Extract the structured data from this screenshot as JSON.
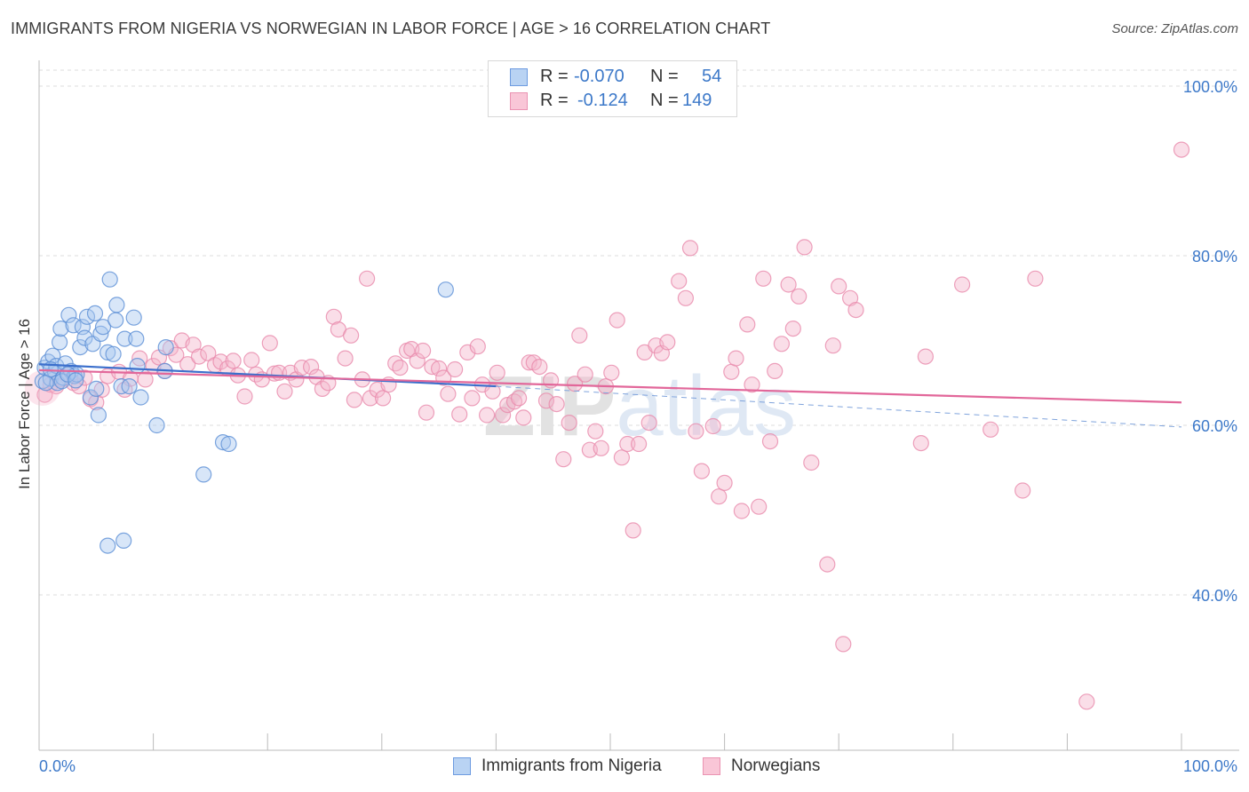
{
  "title": "IMMIGRANTS FROM NIGERIA VS NORWEGIAN IN LABOR FORCE | AGE > 16 CORRELATION CHART",
  "source": "Source: ZipAtlas.com",
  "watermark": "ZIPatlas",
  "legend": {
    "rows": [
      {
        "r_label": "R =",
        "r_value": "-0.070",
        "n_label": "N =",
        "n_value": "54"
      },
      {
        "r_label": "R =",
        "r_value": "-0.124",
        "n_label": "N =",
        "n_value": "149"
      }
    ]
  },
  "bottom_legend": [
    "Immigrants from Nigeria",
    "Norwegians"
  ],
  "colors": {
    "blue_fill": "#a9c8f0",
    "blue_stroke": "#5b8fd6",
    "blue_line": "#3b6fcc",
    "pink_fill": "#f5b5cb",
    "pink_stroke": "#e98aab",
    "pink_line": "#e2679a",
    "tick_label": "#3d79c9",
    "grid": "#dddddd"
  },
  "chart_data": {
    "type": "scatter",
    "ylabel": "In Labor Force | Age > 16",
    "xlabel": "",
    "xlim": [
      0,
      100
    ],
    "ylim": [
      20,
      102
    ],
    "x_tick_labels": [
      "0.0%",
      "100.0%"
    ],
    "y_ticks": [
      40,
      60,
      80,
      100
    ],
    "y_tick_labels": [
      "40.0%",
      "60.0%",
      "80.0%",
      "100.0%"
    ],
    "grid": true,
    "legend_position": "top-center",
    "series": [
      {
        "name": "Immigrants from Nigeria",
        "color": "blue",
        "trend": {
          "x1": 0,
          "y1": 67.2,
          "x2": 40,
          "y2": 64.6,
          "dash_to_x": 100,
          "dash_to_y": 59.8
        },
        "points": [
          [
            0.3,
            65.2
          ],
          [
            0.5,
            66.8
          ],
          [
            0.8,
            67.5
          ],
          [
            1.0,
            65.5
          ],
          [
            1.2,
            68.2
          ],
          [
            1.4,
            66.3
          ],
          [
            1.5,
            67.0
          ],
          [
            1.6,
            65.0
          ],
          [
            1.8,
            69.8
          ],
          [
            1.9,
            71.4
          ],
          [
            2.1,
            65.6
          ],
          [
            2.3,
            67.3
          ],
          [
            2.6,
            73.0
          ],
          [
            2.8,
            66.4
          ],
          [
            3.0,
            71.8
          ],
          [
            3.1,
            65.8
          ],
          [
            3.3,
            66.0
          ],
          [
            3.6,
            69.2
          ],
          [
            3.8,
            71.6
          ],
          [
            4.0,
            70.3
          ],
          [
            4.2,
            72.8
          ],
          [
            4.5,
            63.3
          ],
          [
            4.7,
            69.6
          ],
          [
            4.9,
            73.2
          ],
          [
            5.0,
            64.3
          ],
          [
            5.2,
            61.2
          ],
          [
            5.4,
            70.8
          ],
          [
            5.6,
            71.6
          ],
          [
            6.0,
            68.6
          ],
          [
            6.2,
            77.2
          ],
          [
            6.5,
            68.4
          ],
          [
            6.7,
            72.4
          ],
          [
            6.8,
            74.2
          ],
          [
            7.2,
            64.6
          ],
          [
            7.5,
            70.2
          ],
          [
            7.9,
            64.6
          ],
          [
            8.3,
            72.7
          ],
          [
            8.6,
            67.0
          ],
          [
            8.9,
            63.3
          ],
          [
            8.5,
            70.2
          ],
          [
            10.3,
            60.0
          ],
          [
            11.1,
            69.2
          ],
          [
            11.0,
            66.4
          ],
          [
            14.4,
            54.2
          ],
          [
            16.1,
            58.0
          ],
          [
            16.6,
            57.8
          ],
          [
            6.0,
            45.8
          ],
          [
            7.4,
            46.4
          ],
          [
            35.6,
            76.0
          ],
          [
            0.6,
            65.0
          ],
          [
            1.0,
            66.6
          ],
          [
            2.0,
            65.2
          ],
          [
            2.5,
            66.0
          ],
          [
            3.2,
            65.3
          ]
        ]
      },
      {
        "name": "Norwegians",
        "color": "pink",
        "trend": {
          "x1": 0,
          "y1": 66.5,
          "x2": 100,
          "y2": 62.7
        },
        "points": [
          [
            0.5,
            63.6
          ],
          [
            1.0,
            64.8
          ],
          [
            1.5,
            64.6
          ],
          [
            2.0,
            65.4
          ],
          [
            2.5,
            66.0
          ],
          [
            3.0,
            65.0
          ],
          [
            3.5,
            64.6
          ],
          [
            4.0,
            65.6
          ],
          [
            4.5,
            63.1
          ],
          [
            5.0,
            62.7
          ],
          [
            5.5,
            64.2
          ],
          [
            6.0,
            65.8
          ],
          [
            7.0,
            66.3
          ],
          [
            7.5,
            64.2
          ],
          [
            8.0,
            65.5
          ],
          [
            8.8,
            67.9
          ],
          [
            9.3,
            65.4
          ],
          [
            10.0,
            67.0
          ],
          [
            10.5,
            68.0
          ],
          [
            11.0,
            66.4
          ],
          [
            11.5,
            69.1
          ],
          [
            12.0,
            68.3
          ],
          [
            12.5,
            70.0
          ],
          [
            13.0,
            67.2
          ],
          [
            13.5,
            69.5
          ],
          [
            14.0,
            68.1
          ],
          [
            14.8,
            68.5
          ],
          [
            15.4,
            67.1
          ],
          [
            15.9,
            67.5
          ],
          [
            16.5,
            66.7
          ],
          [
            17.0,
            67.6
          ],
          [
            17.4,
            65.9
          ],
          [
            18.0,
            63.4
          ],
          [
            18.6,
            67.7
          ],
          [
            19.0,
            66.0
          ],
          [
            19.5,
            65.4
          ],
          [
            20.2,
            69.7
          ],
          [
            20.6,
            66.1
          ],
          [
            21.0,
            66.2
          ],
          [
            21.5,
            64.0
          ],
          [
            22.0,
            66.2
          ],
          [
            22.5,
            65.4
          ],
          [
            23.0,
            66.8
          ],
          [
            23.8,
            66.9
          ],
          [
            24.3,
            65.7
          ],
          [
            24.8,
            64.3
          ],
          [
            25.3,
            65.0
          ],
          [
            25.8,
            72.8
          ],
          [
            26.2,
            71.3
          ],
          [
            26.8,
            67.9
          ],
          [
            27.3,
            70.6
          ],
          [
            27.6,
            63.0
          ],
          [
            28.3,
            65.4
          ],
          [
            28.7,
            77.3
          ],
          [
            29.0,
            63.2
          ],
          [
            29.6,
            64.2
          ],
          [
            30.1,
            63.2
          ],
          [
            30.6,
            64.8
          ],
          [
            31.2,
            67.3
          ],
          [
            31.6,
            66.8
          ],
          [
            32.2,
            68.8
          ],
          [
            32.6,
            69.0
          ],
          [
            33.1,
            67.6
          ],
          [
            33.6,
            68.8
          ],
          [
            33.9,
            61.5
          ],
          [
            34.4,
            66.9
          ],
          [
            35.0,
            66.7
          ],
          [
            35.4,
            65.6
          ],
          [
            35.8,
            63.7
          ],
          [
            36.4,
            66.6
          ],
          [
            36.8,
            61.3
          ],
          [
            37.5,
            68.6
          ],
          [
            37.9,
            63.2
          ],
          [
            38.4,
            69.3
          ],
          [
            38.8,
            64.8
          ],
          [
            39.2,
            61.2
          ],
          [
            39.7,
            64.0
          ],
          [
            40.1,
            66.2
          ],
          [
            40.6,
            61.2
          ],
          [
            41.0,
            62.4
          ],
          [
            41.6,
            62.8
          ],
          [
            42.0,
            63.2
          ],
          [
            42.4,
            60.9
          ],
          [
            42.9,
            67.4
          ],
          [
            43.3,
            67.4
          ],
          [
            43.8,
            66.9
          ],
          [
            44.4,
            62.9
          ],
          [
            44.8,
            65.3
          ],
          [
            45.3,
            62.5
          ],
          [
            45.9,
            56.0
          ],
          [
            46.4,
            60.3
          ],
          [
            46.9,
            64.9
          ],
          [
            47.3,
            70.6
          ],
          [
            47.8,
            66.0
          ],
          [
            48.2,
            57.1
          ],
          [
            48.7,
            59.3
          ],
          [
            49.2,
            57.3
          ],
          [
            49.6,
            64.6
          ],
          [
            50.1,
            66.2
          ],
          [
            50.6,
            72.4
          ],
          [
            51.0,
            56.2
          ],
          [
            51.5,
            57.8
          ],
          [
            52.0,
            47.6
          ],
          [
            52.5,
            57.8
          ],
          [
            53.0,
            68.6
          ],
          [
            53.4,
            60.3
          ],
          [
            54.0,
            69.4
          ],
          [
            54.5,
            68.5
          ],
          [
            55.0,
            69.8
          ],
          [
            56.0,
            77.0
          ],
          [
            56.6,
            75.0
          ],
          [
            57.0,
            80.9
          ],
          [
            57.5,
            59.3
          ],
          [
            58.0,
            54.6
          ],
          [
            59.0,
            59.9
          ],
          [
            59.5,
            51.6
          ],
          [
            60.0,
            53.2
          ],
          [
            60.6,
            66.3
          ],
          [
            61.0,
            67.9
          ],
          [
            61.5,
            49.9
          ],
          [
            62.0,
            71.9
          ],
          [
            62.4,
            64.8
          ],
          [
            63.0,
            50.4
          ],
          [
            63.4,
            77.3
          ],
          [
            64.0,
            58.1
          ],
          [
            64.4,
            66.4
          ],
          [
            65.0,
            69.6
          ],
          [
            65.6,
            76.6
          ],
          [
            66.0,
            71.4
          ],
          [
            66.5,
            75.2
          ],
          [
            67.0,
            81.0
          ],
          [
            67.6,
            55.6
          ],
          [
            69.0,
            43.6
          ],
          [
            69.5,
            69.4
          ],
          [
            70.0,
            76.4
          ],
          [
            70.4,
            34.2
          ],
          [
            71.0,
            75.0
          ],
          [
            71.5,
            73.6
          ],
          [
            77.2,
            57.9
          ],
          [
            77.6,
            68.1
          ],
          [
            80.8,
            76.6
          ],
          [
            83.3,
            59.5
          ],
          [
            86.1,
            52.3
          ],
          [
            87.2,
            77.3
          ],
          [
            91.7,
            27.4
          ],
          [
            100.0,
            92.5
          ]
        ]
      }
    ]
  }
}
